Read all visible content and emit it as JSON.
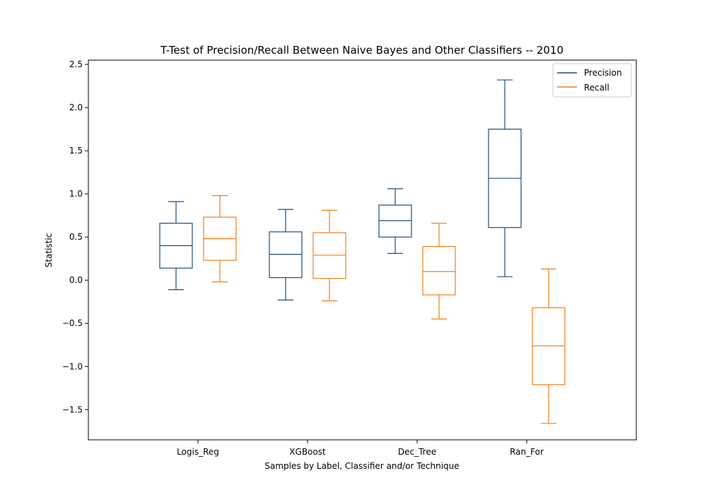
{
  "chart_data": {
    "type": "box",
    "title": "T-Test of Precision/Recall Between Naive Bayes and Other Classifiers -- 2010",
    "xlabel": "Samples by Label, Classifier and/or Technique",
    "ylabel": "Statistic",
    "ylim": [
      -1.85,
      2.55
    ],
    "yticks": [
      -1.5,
      -1.0,
      -0.5,
      0.0,
      0.5,
      1.0,
      1.5,
      2.0,
      2.5
    ],
    "ytick_labels": [
      "−1.5",
      "−1.0",
      "−0.5",
      "0.0",
      "0.5",
      "1.0",
      "1.5",
      "2.0",
      "2.5"
    ],
    "categories": [
      "Logis_Reg",
      "XGBoost",
      "Dec_Tree",
      "Ran_For"
    ],
    "grid": false,
    "legend_position": "top-right",
    "series": [
      {
        "name": "Precision",
        "color": "#1f4e79",
        "boxes": [
          {
            "whislo": -0.11,
            "q1": 0.14,
            "med": 0.4,
            "q3": 0.66,
            "whishi": 0.91
          },
          {
            "whislo": -0.23,
            "q1": 0.03,
            "med": 0.3,
            "q3": 0.56,
            "whishi": 0.82
          },
          {
            "whislo": 0.31,
            "q1": 0.5,
            "med": 0.69,
            "q3": 0.87,
            "whishi": 1.06
          },
          {
            "whislo": 0.04,
            "q1": 0.61,
            "med": 1.18,
            "q3": 1.75,
            "whishi": 2.32
          }
        ]
      },
      {
        "name": "Recall",
        "color": "#f07f17",
        "boxes": [
          {
            "whislo": -0.02,
            "q1": 0.23,
            "med": 0.48,
            "q3": 0.73,
            "whishi": 0.98
          },
          {
            "whislo": -0.24,
            "q1": 0.02,
            "med": 0.29,
            "q3": 0.55,
            "whishi": 0.81
          },
          {
            "whislo": -0.45,
            "q1": -0.17,
            "med": 0.1,
            "q3": 0.39,
            "whishi": 0.66
          },
          {
            "whislo": -1.66,
            "q1": -1.21,
            "med": -0.76,
            "q3": -0.32,
            "whishi": 0.13
          }
        ]
      }
    ]
  }
}
